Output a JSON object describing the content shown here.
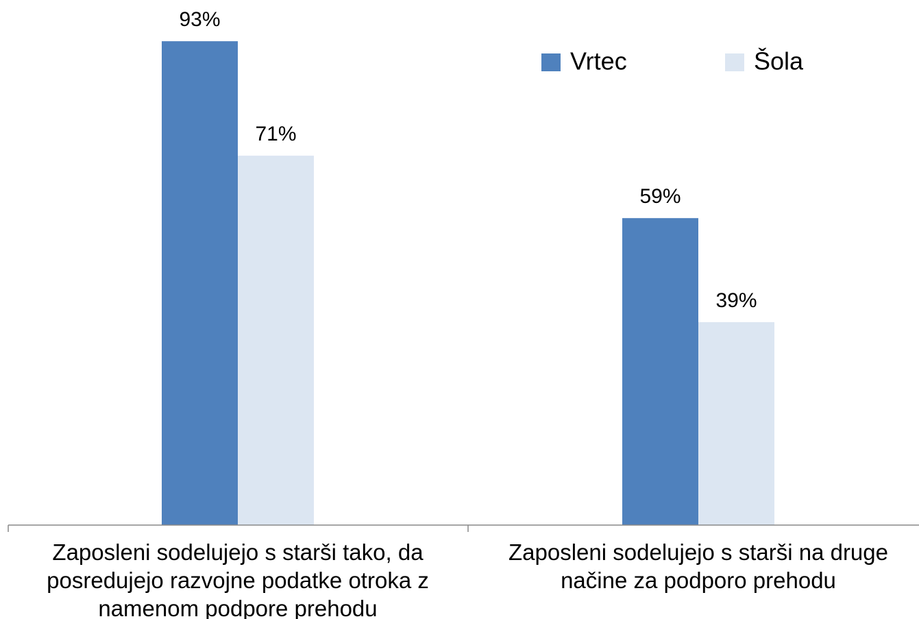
{
  "chart_data": {
    "type": "bar",
    "categories": [
      "Zaposleni sodelujejo s starši tako, da posredujejo razvojne podatke otroka z namenom podpore prehodu",
      "Zaposleni sodelujejo s starši na druge načine za podporo prehodu"
    ],
    "series": [
      {
        "name": "Vrtec",
        "color": "#4f81bd",
        "values": [
          93,
          59
        ],
        "value_labels": [
          "93%",
          "59%"
        ]
      },
      {
        "name": "Šola",
        "color": "#dce6f2",
        "values": [
          71,
          39
        ],
        "value_labels": [
          "71%",
          "39%"
        ]
      }
    ],
    "legend": "top-right"
  }
}
